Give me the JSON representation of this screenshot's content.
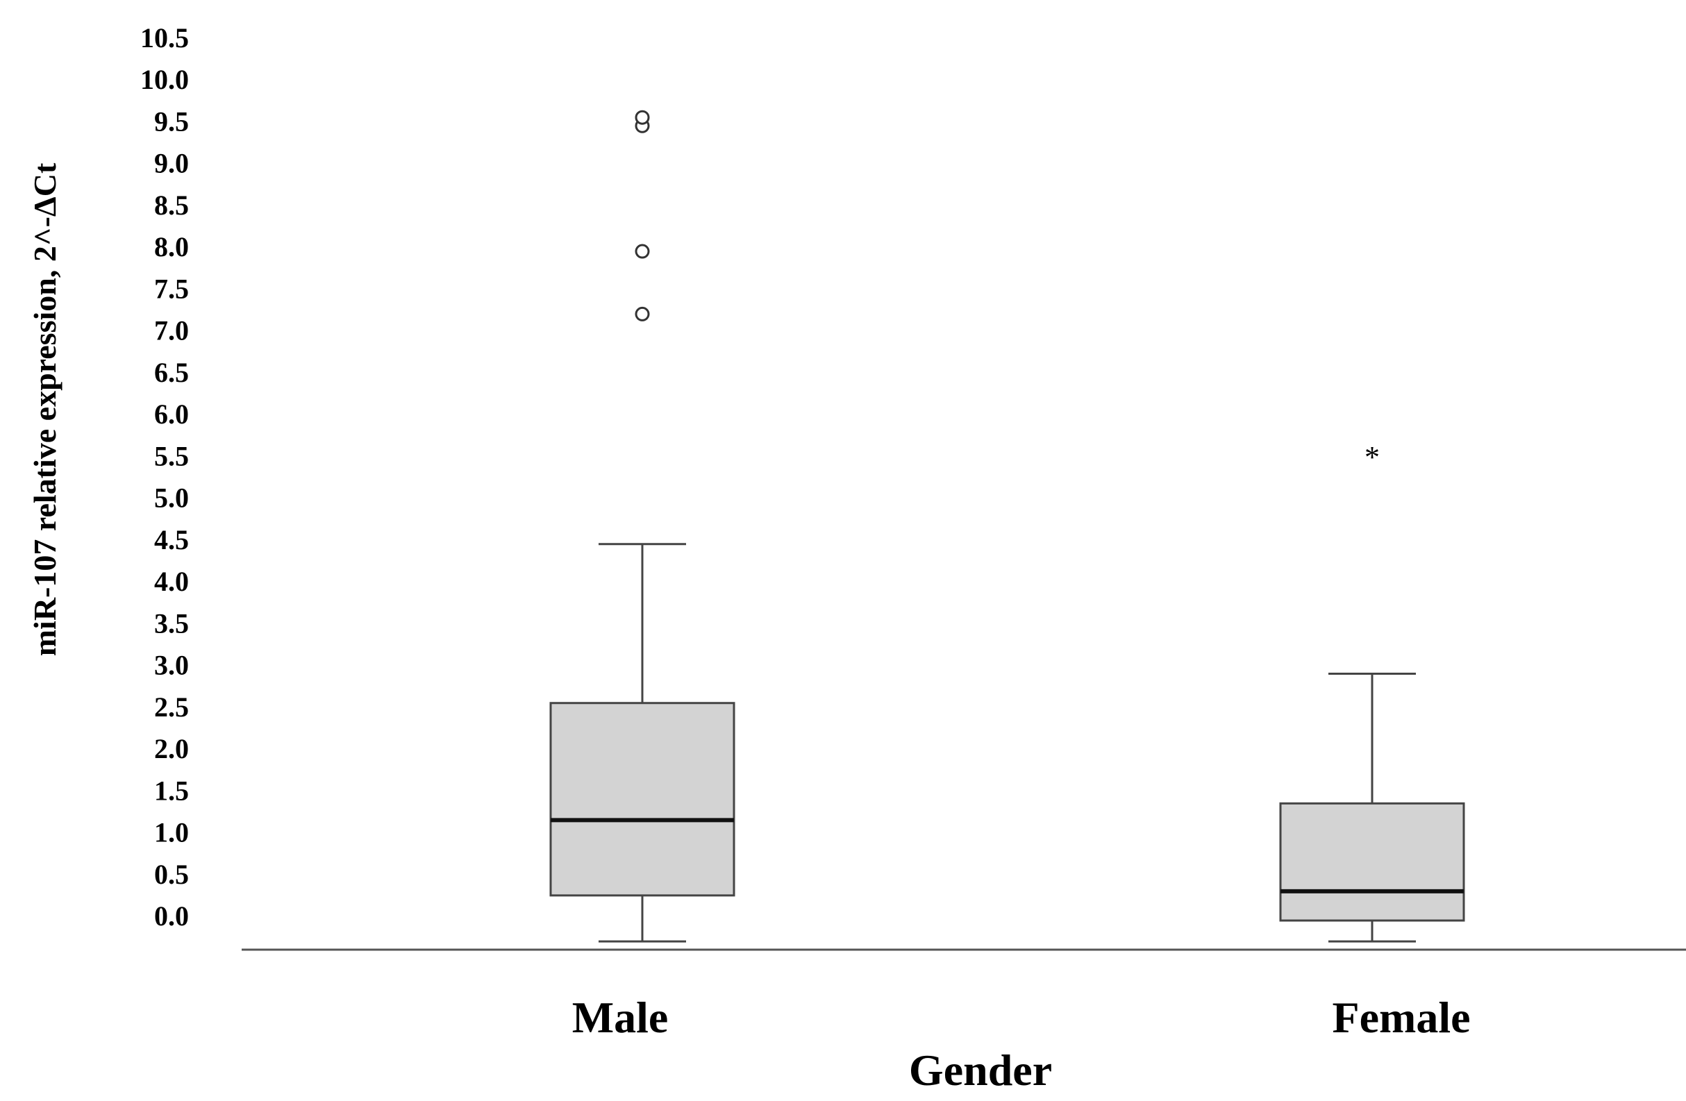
{
  "chart_data": {
    "type": "boxplot",
    "title": "",
    "xlabel": "Gender",
    "ylabel": "miR-107  relative expression,  2^-ΔCt",
    "ylim": [
      -0.3,
      10.5
    ],
    "y_ticks": [
      "0.0",
      "0.5",
      "1.0",
      "1.5",
      "2.0",
      "2.5",
      "3.0",
      "3.5",
      "4.0",
      "4.5",
      "5.0",
      "5.5",
      "6.0",
      "6.5",
      "7.0",
      "7.5",
      "8.0",
      "8.5",
      "9.0",
      "9.5",
      "10.0",
      "10.5"
    ],
    "categories": [
      "Male",
      "Female"
    ],
    "boxes": [
      {
        "category": "Male",
        "whisker_low": -0.3,
        "q1": 0.25,
        "median": 1.15,
        "q3": 2.55,
        "whisker_high": 4.45,
        "outliers": [
          7.2,
          7.95,
          9.45,
          9.55
        ],
        "extremes": []
      },
      {
        "category": "Female",
        "whisker_low": -0.3,
        "q1": -0.05,
        "median": 0.3,
        "q3": 1.35,
        "whisker_high": 2.9,
        "outliers": [],
        "extremes": [
          5.55
        ]
      }
    ],
    "extreme_marker": "*",
    "box_fill": "#d3d3d3",
    "grid": false,
    "legend": "none"
  }
}
